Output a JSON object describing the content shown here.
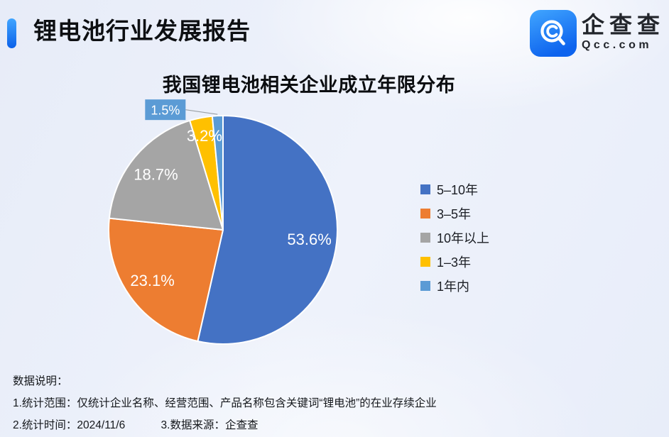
{
  "header": {
    "title": "锂电池行业发展报告"
  },
  "logo": {
    "brand": "企查查",
    "domain": "Qcc.com",
    "icon": "qcc-magnifier-icon",
    "icon_gradient": [
      "#41a6ff",
      "#0d63ee"
    ]
  },
  "chart_data": {
    "type": "pie",
    "title": "我国锂电池相关企业成立年限分布",
    "series": [
      {
        "name": "5–10年",
        "value": 53.6,
        "label": "53.6%",
        "color": "#4472C4"
      },
      {
        "name": "3–5年",
        "value": 23.1,
        "label": "23.1%",
        "color": "#ED7D31"
      },
      {
        "name": "10年以上",
        "value": 18.7,
        "label": "18.7%",
        "color": "#A5A5A5"
      },
      {
        "name": "1–3年",
        "value": 3.2,
        "label": "3.2%",
        "color": "#FFC000"
      },
      {
        "name": "1年内",
        "value": 1.5,
        "label": "1.5%",
        "color": "#5B9BD5",
        "label_style": "callout"
      }
    ],
    "start_angle_deg": 0,
    "direction": "clockwise",
    "legend_position": "right",
    "slice_gap_color": "#FFFFFF",
    "label_color": "#FFFFFF"
  },
  "footer": {
    "heading": "数据说明：",
    "note1": "1.统计范围：仅统计企业名称、经营范围、产品名称包含关键词“锂电池”的在业存续企业",
    "note2": "2.统计时间：2024/11/6",
    "note3": "3.数据来源：企查查"
  }
}
